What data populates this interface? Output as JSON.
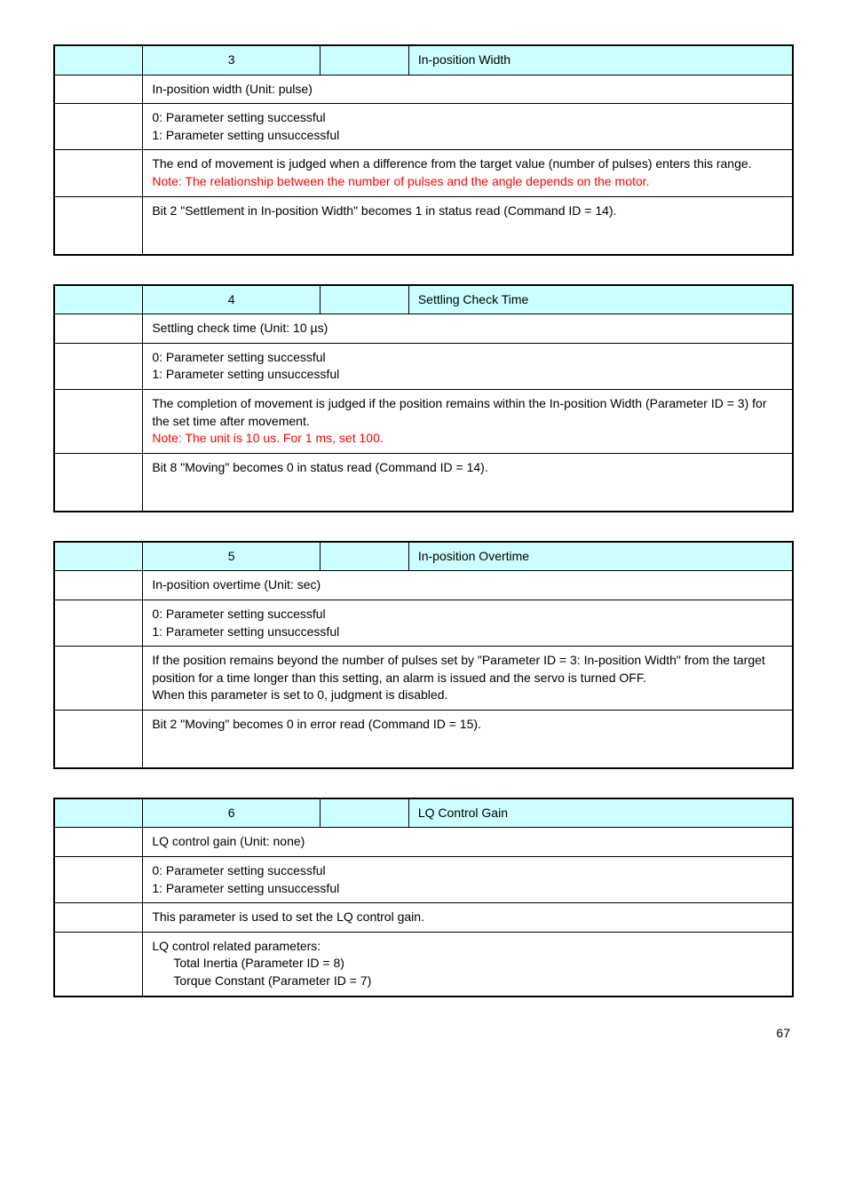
{
  "tables": [
    {
      "id": "3",
      "name": "In-position Width",
      "rows": [
        {
          "type": "text",
          "content": "In-position width (Unit: pulse)"
        },
        {
          "type": "text",
          "content": "0: Parameter setting successful\n1: Parameter setting unsuccessful"
        },
        {
          "type": "mixed",
          "parts": [
            {
              "text": "The end of movement is judged when a difference from the target value (number of pulses) enters this range.",
              "red": false
            },
            {
              "text": "Note: The relationship between the number of pulses and the angle depends on the motor.",
              "red": true
            }
          ]
        },
        {
          "type": "text",
          "content": "Bit 2 \"Settlement in In-position Width\" becomes 1 in status read (Command ID = 14)."
        }
      ],
      "tallLast": true
    },
    {
      "id": "4",
      "name": "Settling Check Time",
      "rows": [
        {
          "type": "text",
          "content": "Settling check time (Unit: 10 µs)"
        },
        {
          "type": "text",
          "content": "0: Parameter setting successful\n1: Parameter setting unsuccessful"
        },
        {
          "type": "mixed",
          "parts": [
            {
              "text": "The completion of movement is judged if the position remains within the In-position Width (Parameter ID = 3) for the set time after movement.",
              "red": false
            },
            {
              "text": "Note: The unit is 10 us. For 1 ms, set 100.",
              "red": true
            }
          ]
        },
        {
          "type": "text",
          "content": "Bit 8 \"Moving\" becomes 0 in status read (Command ID = 14)."
        }
      ],
      "tallLast": true
    },
    {
      "id": "5",
      "name": "In-position Overtime",
      "rows": [
        {
          "type": "text",
          "content": "In-position overtime (Unit: sec)"
        },
        {
          "type": "text",
          "content": "0: Parameter setting successful\n1: Parameter setting unsuccessful"
        },
        {
          "type": "text",
          "content": "If the position remains beyond the number of pulses set by \"Parameter ID = 3: In-position Width\" from the target position for a time longer than this setting, an alarm is issued and the servo is turned OFF.\nWhen this parameter is set to 0, judgment is disabled."
        },
        {
          "type": "text",
          "content": "Bit 2 \"Moving\" becomes 0 in error read (Command ID = 15)."
        }
      ],
      "tallLast": true
    },
    {
      "id": "6",
      "name": "LQ Control Gain",
      "rows": [
        {
          "type": "text",
          "content": "LQ control gain (Unit: none)"
        },
        {
          "type": "text",
          "content": "0: Parameter setting successful\n1: Parameter setting unsuccessful"
        },
        {
          "type": "text",
          "content": "This parameter is used to set the LQ control gain."
        },
        {
          "type": "indented",
          "lead": "LQ control related parameters:",
          "lines": [
            "Total Inertia (Parameter ID = 8)",
            "Torque Constant (Parameter ID = 7)"
          ]
        }
      ],
      "tallLast": false
    }
  ],
  "pageNumber": "67"
}
